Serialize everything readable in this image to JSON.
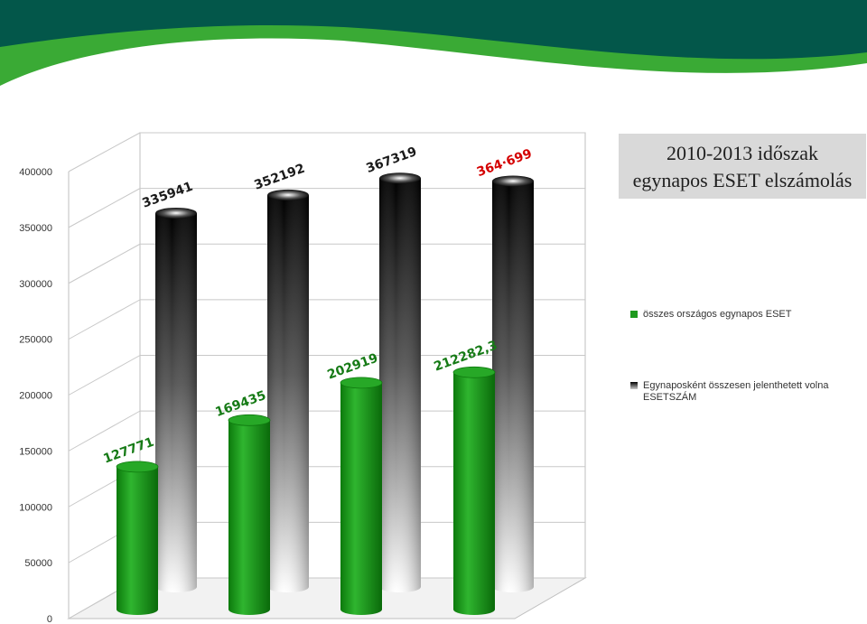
{
  "title": {
    "line1": "2010-2013 időszak",
    "line2": "egynapos ESET elszámolás"
  },
  "colors": {
    "banner_dark": "#03574a",
    "banner_green": "#3aaa35",
    "green_series": "#1e9a1e",
    "black_series": "#111111",
    "red_label": "#d40000"
  },
  "chart_data": {
    "type": "bar",
    "ylim": [
      0,
      400000
    ],
    "yticks": [
      "0",
      "50000",
      "100000",
      "150000",
      "200000",
      "250000",
      "300000",
      "350000",
      "400000"
    ],
    "grid": true,
    "legend_position": "right",
    "series": [
      {
        "name": "összes országos egynapos ESET",
        "values": [
          127771,
          169435,
          202919,
          212282.3
        ],
        "labels": [
          "127771",
          "169435",
          "202919",
          "212282,3"
        ]
      },
      {
        "name": "Egynaposként összesen jelenthetett volna ESETSZÁM",
        "values": [
          335941,
          352192,
          367319,
          364699
        ],
        "labels": [
          "335941",
          "352192",
          "367319",
          "364·699"
        ]
      }
    ]
  }
}
